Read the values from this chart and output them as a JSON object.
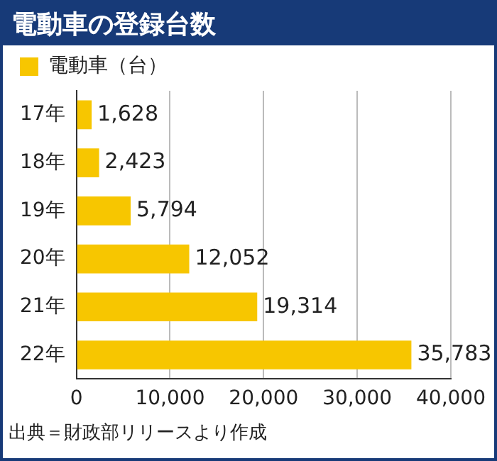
{
  "chart_data": {
    "type": "bar",
    "orientation": "horizontal",
    "title": "電動車の登録台数",
    "categories": [
      "17年",
      "18年",
      "19年",
      "20年",
      "21年",
      "22年"
    ],
    "series": [
      {
        "name": "電動車（台）",
        "color": "#f7c600",
        "values": [
          1628,
          2423,
          5794,
          12052,
          19314,
          35783
        ],
        "value_labels": [
          "1,628",
          "2,423",
          "5,794",
          "12,052",
          "19,314",
          "35,783"
        ]
      }
    ],
    "xlim": [
      0,
      40000
    ],
    "xticks": [
      0,
      {
        "value": 10000,
        "label": "10,000"
      },
      {
        "value": 20000,
        "label": "20,000"
      },
      {
        "value": 30000,
        "label": "30,000"
      },
      {
        "value": 40000,
        "label": "40,000"
      }
    ],
    "grid": "x",
    "legend": "top left",
    "annotations": [
      "出典＝財政部リリースより作成"
    ]
  }
}
